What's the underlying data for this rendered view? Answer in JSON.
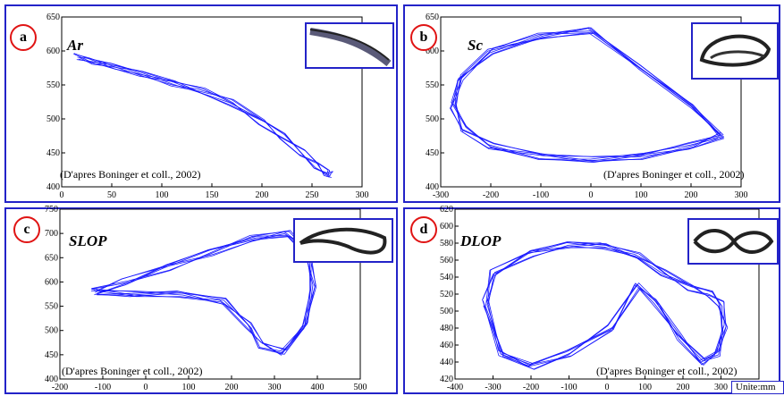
{
  "unit_label": "Unite:mm",
  "chart_data": [
    {
      "panel": "a",
      "title": "Ar",
      "type": "line",
      "credit": "(D'apres Boninger et coll., 2002)",
      "xlim": [
        0,
        300
      ],
      "ylim": [
        400,
        650
      ],
      "xticks": [
        0,
        50,
        100,
        150,
        200,
        250,
        300
      ],
      "yticks": [
        400,
        450,
        500,
        550,
        600,
        650
      ],
      "color": "#1a1aff",
      "series": [
        {
          "x": [
            15,
            30,
            50,
            80,
            110,
            140,
            170,
            200,
            220,
            240,
            255,
            265,
            268
          ],
          "y": [
            592,
            585,
            578,
            566,
            553,
            541,
            524,
            496,
            474,
            450,
            432,
            420,
            418
          ]
        }
      ]
    },
    {
      "panel": "b",
      "title": "Sc",
      "type": "line",
      "credit": "(D'apres Boninger et coll., 2002)",
      "xlim": [
        -300,
        300
      ],
      "ylim": [
        400,
        650
      ],
      "xticks": [
        -300,
        -200,
        -100,
        0,
        100,
        200,
        300
      ],
      "yticks": [
        400,
        450,
        500,
        550,
        600,
        650
      ],
      "color": "#1a1aff",
      "series": [
        {
          "x": [
            260,
            200,
            100,
            0,
            -100,
            -200,
            -260,
            -275,
            -255,
            -200,
            -100,
            0,
            100,
            200,
            260
          ],
          "y": [
            475,
            520,
            575,
            630,
            622,
            600,
            560,
            520,
            485,
            460,
            445,
            440,
            445,
            460,
            475
          ]
        }
      ]
    },
    {
      "panel": "c",
      "title": "SLOP",
      "type": "line",
      "credit": "(D'apres Boninger et coll., 2002)",
      "xlim": [
        -200,
        500
      ],
      "ylim": [
        400,
        750
      ],
      "xticks": [
        -200,
        -100,
        0,
        100,
        200,
        300,
        400,
        500
      ],
      "yticks": [
        400,
        450,
        500,
        550,
        600,
        650,
        700,
        750
      ],
      "color": "#1a1aff",
      "series": [
        {
          "x": [
            -120,
            -50,
            50,
            150,
            250,
            330,
            380,
            390,
            370,
            320,
            270,
            240,
            180,
            80,
            -30,
            -120
          ],
          "y": [
            580,
            600,
            630,
            660,
            690,
            700,
            660,
            590,
            510,
            455,
            470,
            510,
            560,
            575,
            575,
            580
          ]
        }
      ]
    },
    {
      "panel": "d",
      "title": "DLOP",
      "type": "line",
      "credit": "(D'apres Boninger et coll., 2002)",
      "xlim": [
        -400,
        400
      ],
      "ylim": [
        420,
        620
      ],
      "xticks": [
        -400,
        -300,
        -200,
        -100,
        0,
        100,
        200,
        300
      ],
      "yticks": [
        420,
        440,
        460,
        480,
        500,
        520,
        540,
        560,
        580,
        600,
        620
      ],
      "color": "#1a1aff",
      "series": [
        {
          "x": [
            -320,
            -300,
            -200,
            -100,
            -10,
            80,
            150,
            220,
            270,
            300,
            310,
            290,
            250,
            190,
            130,
            80,
            10,
            -100,
            -200,
            -280,
            -320
          ],
          "y": [
            510,
            545,
            568,
            578,
            577,
            565,
            545,
            528,
            520,
            508,
            480,
            450,
            440,
            470,
            510,
            530,
            480,
            450,
            435,
            450,
            510
          ]
        }
      ]
    }
  ]
}
